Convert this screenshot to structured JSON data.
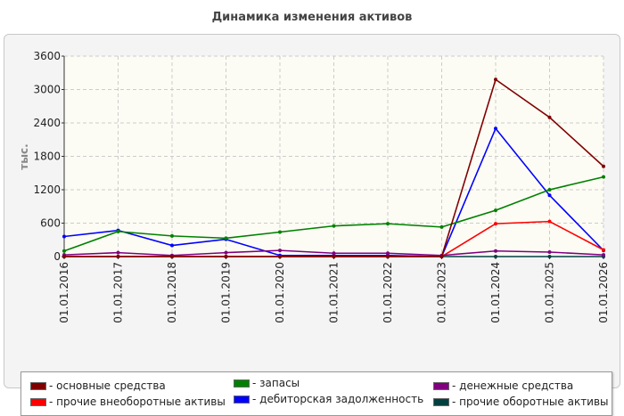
{
  "chart_data": {
    "type": "line",
    "title": "Динамика изменения активов",
    "ylabel": "тыс.",
    "xlabel": "",
    "ylim": [
      0,
      3600
    ],
    "yticks": [
      0,
      600,
      1200,
      1800,
      2400,
      3000,
      3600
    ],
    "grid": true,
    "legend_position": "bottom",
    "categories": [
      "01.01.2016",
      "01.01.2017",
      "01.01.2018",
      "01.01.2019",
      "01.01.2020",
      "01.01.2021",
      "01.01.2022",
      "01.01.2023",
      "01.01.2024",
      "01.01.2025",
      "01.01.2026"
    ],
    "series": [
      {
        "name": "основные средства",
        "color": "#800000",
        "values": [
          0,
          0,
          0,
          0,
          0,
          0,
          0,
          0,
          3180,
          2500,
          1620
        ]
      },
      {
        "name": "запасы",
        "color": "#008000",
        "values": [
          100,
          450,
          370,
          330,
          440,
          550,
          590,
          530,
          830,
          1200,
          1430
        ]
      },
      {
        "name": "денежные средства",
        "color": "#800080",
        "values": [
          30,
          70,
          20,
          70,
          110,
          60,
          60,
          20,
          100,
          80,
          30
        ]
      },
      {
        "name": "прочие внеоборотные активы",
        "color": "#ff0000",
        "values": [
          0,
          0,
          0,
          0,
          0,
          0,
          0,
          0,
          590,
          630,
          120
        ]
      },
      {
        "name": "дебиторская задолженность",
        "color": "#0000ff",
        "values": [
          360,
          470,
          200,
          310,
          20,
          20,
          20,
          0,
          2300,
          1100,
          110
        ]
      },
      {
        "name": "прочие оборотные активы",
        "color": "#004040",
        "values": [
          0,
          0,
          0,
          0,
          0,
          0,
          0,
          0,
          0,
          0,
          0
        ]
      }
    ]
  }
}
